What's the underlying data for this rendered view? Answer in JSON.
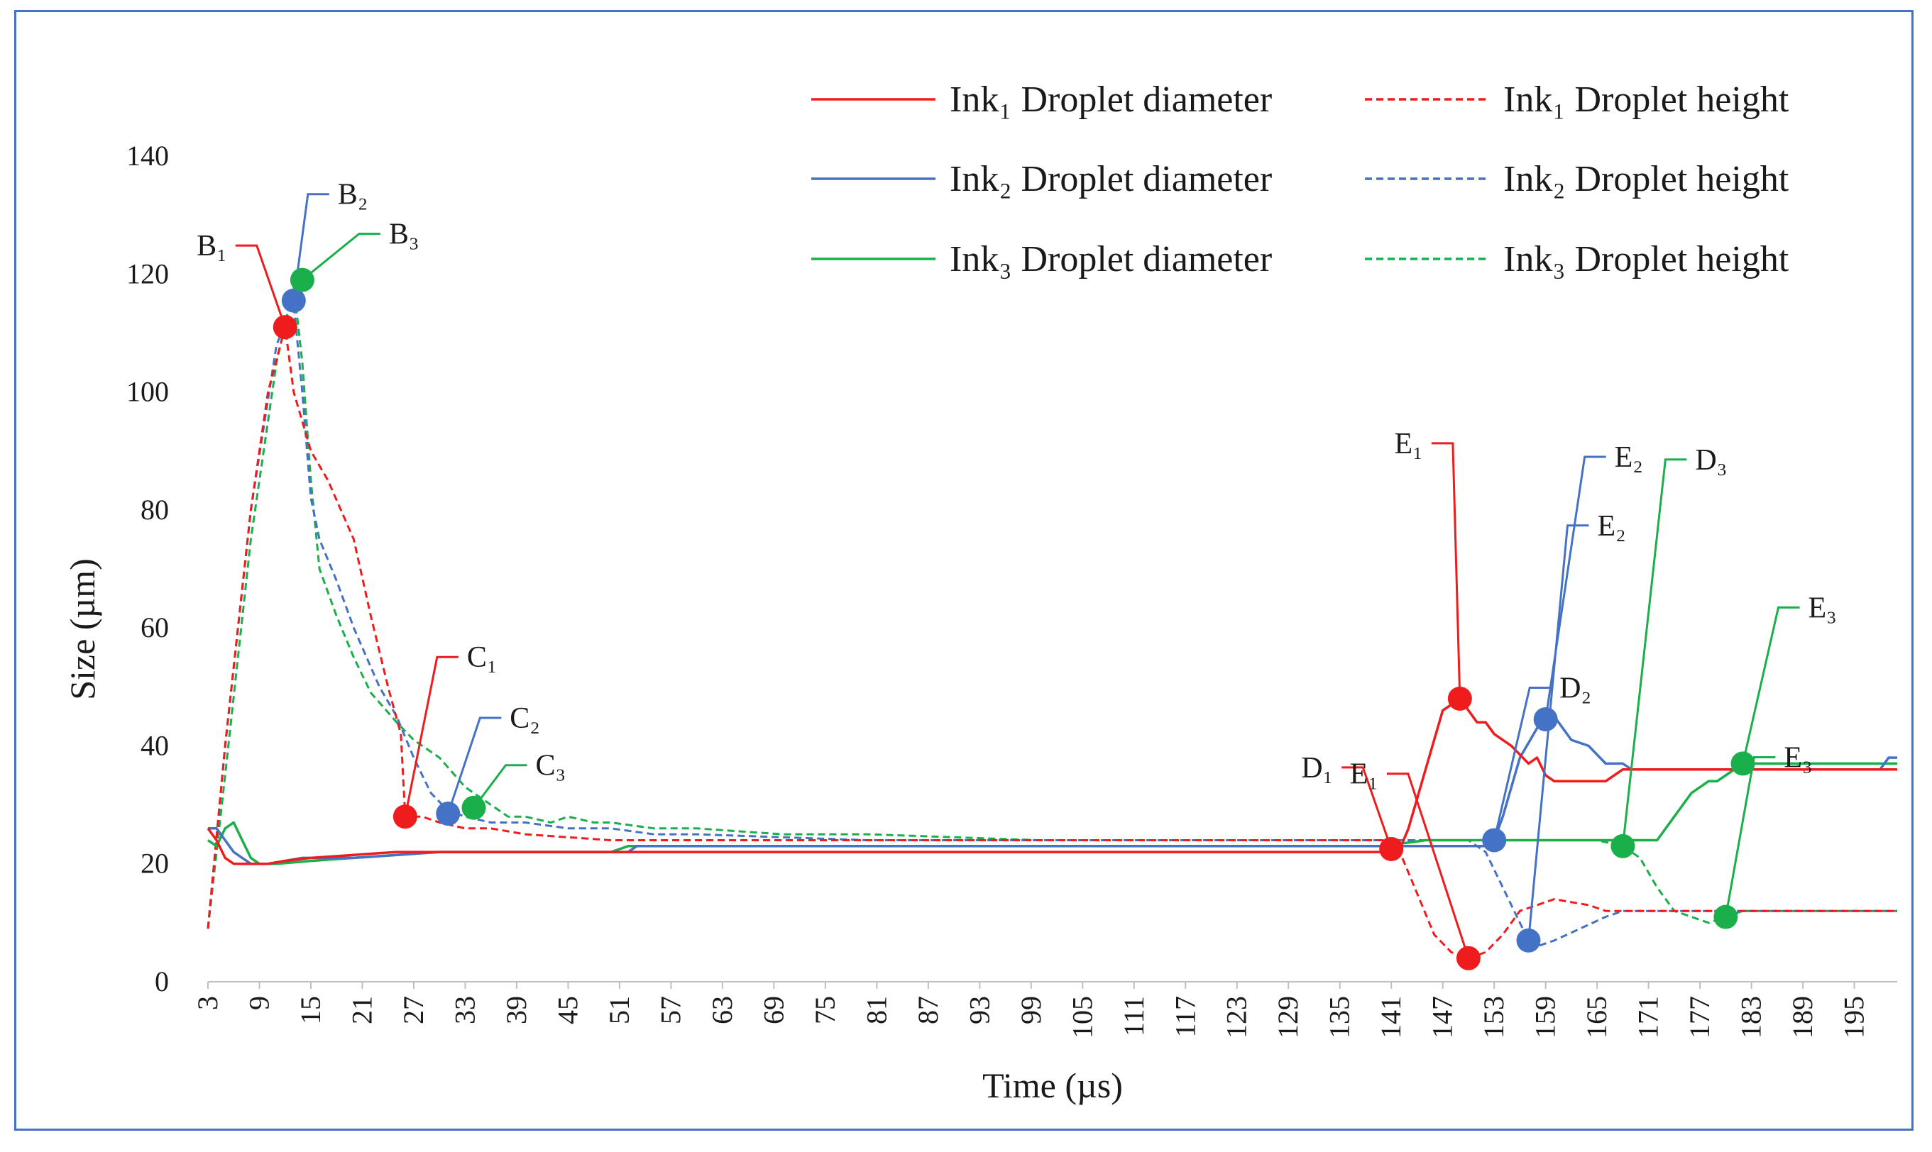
{
  "chart_data": {
    "type": "line",
    "xlabel": "Time (µs)",
    "ylabel": "Size (µm)",
    "xlim": [
      3,
      200
    ],
    "ylim": [
      0,
      140
    ],
    "x_ticks": [
      "3",
      "9",
      "15",
      "21",
      "27",
      "33",
      "39",
      "45",
      "51",
      "57",
      "63",
      "69",
      "75",
      "81",
      "87",
      "93",
      "99",
      "105",
      "111",
      "117",
      "123",
      "129",
      "135",
      "141",
      "147",
      "153",
      "159",
      "165",
      "171",
      "177",
      "183",
      "189",
      "195"
    ],
    "y_ticks": [
      "0",
      "20",
      "40",
      "60",
      "80",
      "100",
      "120",
      "140"
    ],
    "colors": {
      "ink1": "#ee1c1c",
      "ink2": "#4472c4",
      "ink3": "#1aaf4b",
      "frame": "#4472c4"
    },
    "series": [
      {
        "name": "Ink₁ Droplet diameter",
        "color": "#ee1c1c",
        "dash": false,
        "points": [
          [
            3,
            26
          ],
          [
            4,
            24
          ],
          [
            5,
            21
          ],
          [
            6,
            20
          ],
          [
            8,
            20
          ],
          [
            10,
            20
          ],
          [
            12,
            20.5
          ],
          [
            15,
            21
          ],
          [
            20,
            21.5
          ],
          [
            25,
            22
          ],
          [
            30,
            22
          ],
          [
            50,
            22
          ],
          [
            100,
            22
          ],
          [
            140,
            22
          ],
          [
            142,
            22.5
          ],
          [
            143,
            26
          ],
          [
            145,
            36
          ],
          [
            147,
            46
          ],
          [
            149,
            48
          ],
          [
            151,
            44
          ],
          [
            152,
            44
          ],
          [
            153,
            42
          ],
          [
            155,
            40
          ],
          [
            157,
            37
          ],
          [
            158,
            38
          ],
          [
            159,
            35
          ],
          [
            160,
            34
          ],
          [
            166,
            34
          ],
          [
            167,
            35
          ],
          [
            168,
            36
          ],
          [
            200,
            36
          ]
        ]
      },
      {
        "name": "Ink₁ Droplet height",
        "color": "#ee1c1c",
        "dash": true,
        "points": [
          [
            3,
            9
          ],
          [
            5,
            40
          ],
          [
            8,
            80
          ],
          [
            10,
            100
          ],
          [
            12,
            111
          ],
          [
            13,
            100
          ],
          [
            15,
            90
          ],
          [
            17,
            85
          ],
          [
            20,
            75
          ],
          [
            22,
            62
          ],
          [
            24,
            50
          ],
          [
            25.5,
            42
          ],
          [
            26,
            28
          ],
          [
            28,
            28
          ],
          [
            30,
            27
          ],
          [
            33,
            26
          ],
          [
            36,
            26
          ],
          [
            40,
            25
          ],
          [
            50,
            24
          ],
          [
            60,
            24
          ],
          [
            80,
            24
          ],
          [
            100,
            24
          ],
          [
            120,
            24
          ],
          [
            140,
            24
          ],
          [
            142,
            22
          ],
          [
            144,
            15
          ],
          [
            146,
            8
          ],
          [
            148,
            5
          ],
          [
            150,
            4
          ],
          [
            152,
            5
          ],
          [
            154,
            8
          ],
          [
            156,
            12
          ],
          [
            158,
            13
          ],
          [
            160,
            14
          ],
          [
            162,
            13.5
          ],
          [
            164,
            13
          ],
          [
            166,
            12
          ],
          [
            200,
            12
          ]
        ]
      },
      {
        "name": "Ink₂ Droplet diameter",
        "color": "#4472c4",
        "dash": false,
        "points": [
          [
            3,
            26
          ],
          [
            4,
            26
          ],
          [
            5,
            24
          ],
          [
            6,
            22
          ],
          [
            7,
            21
          ],
          [
            8,
            20
          ],
          [
            10,
            20
          ],
          [
            14,
            21
          ],
          [
            20,
            21
          ],
          [
            30,
            22
          ],
          [
            48,
            22
          ],
          [
            52,
            22
          ],
          [
            53,
            23
          ],
          [
            100,
            23
          ],
          [
            140,
            23
          ],
          [
            152,
            23
          ],
          [
            153,
            24
          ],
          [
            154,
            28
          ],
          [
            156,
            38
          ],
          [
            158,
            43
          ],
          [
            159,
            44
          ],
          [
            160,
            45
          ],
          [
            161,
            43
          ],
          [
            162,
            41
          ],
          [
            164,
            40
          ],
          [
            166,
            37
          ],
          [
            168,
            37
          ],
          [
            169,
            36
          ],
          [
            175,
            36
          ],
          [
            190,
            36
          ],
          [
            198,
            36
          ],
          [
            199,
            38
          ],
          [
            200,
            38
          ]
        ]
      },
      {
        "name": "Ink₂ Droplet height",
        "color": "#4472c4",
        "dash": true,
        "points": [
          [
            3,
            9
          ],
          [
            5,
            40
          ],
          [
            8,
            80
          ],
          [
            11,
            108
          ],
          [
            13,
            115
          ],
          [
            14,
            100
          ],
          [
            15,
            82
          ],
          [
            16,
            75
          ],
          [
            18,
            68
          ],
          [
            20,
            60
          ],
          [
            23,
            50
          ],
          [
            25,
            45
          ],
          [
            27,
            38
          ],
          [
            29,
            32
          ],
          [
            31,
            29
          ],
          [
            33,
            28
          ],
          [
            36,
            27
          ],
          [
            40,
            27
          ],
          [
            45,
            26
          ],
          [
            50,
            26
          ],
          [
            55,
            25
          ],
          [
            60,
            25
          ],
          [
            80,
            24
          ],
          [
            100,
            24
          ],
          [
            120,
            24
          ],
          [
            140,
            24
          ],
          [
            150,
            24
          ],
          [
            152,
            22
          ],
          [
            154,
            16
          ],
          [
            156,
            10
          ],
          [
            157,
            7
          ],
          [
            158,
            6
          ],
          [
            160,
            7
          ],
          [
            163,
            9
          ],
          [
            166,
            11
          ],
          [
            168,
            12
          ],
          [
            200,
            12
          ]
        ]
      },
      {
        "name": "Ink₃ Droplet diameter",
        "color": "#1aaf4b",
        "dash": false,
        "points": [
          [
            3,
            24
          ],
          [
            4,
            23
          ],
          [
            5,
            26
          ],
          [
            6,
            27
          ],
          [
            7,
            24
          ],
          [
            8,
            21
          ],
          [
            9,
            20
          ],
          [
            11,
            20
          ],
          [
            15,
            20.5
          ],
          [
            20,
            21
          ],
          [
            30,
            22
          ],
          [
            50,
            22
          ],
          [
            52,
            23
          ],
          [
            100,
            23
          ],
          [
            140,
            23
          ],
          [
            145,
            24
          ],
          [
            150,
            24
          ],
          [
            160,
            24
          ],
          [
            170,
            24
          ],
          [
            172,
            24
          ],
          [
            174,
            28
          ],
          [
            176,
            32
          ],
          [
            178,
            34
          ],
          [
            179,
            34
          ],
          [
            180,
            35
          ],
          [
            182,
            37
          ],
          [
            190,
            37
          ],
          [
            200,
            37
          ]
        ]
      },
      {
        "name": "Ink₃ Droplet height",
        "color": "#1aaf4b",
        "dash": true,
        "points": [
          [
            3,
            9
          ],
          [
            5,
            35
          ],
          [
            8,
            75
          ],
          [
            11,
            105
          ],
          [
            13,
            118
          ],
          [
            14,
            105
          ],
          [
            15,
            85
          ],
          [
            16,
            70
          ],
          [
            18,
            62
          ],
          [
            20,
            55
          ],
          [
            22,
            49
          ],
          [
            25,
            44
          ],
          [
            27,
            41
          ],
          [
            30,
            38
          ],
          [
            33,
            33
          ],
          [
            36,
            30
          ],
          [
            38,
            28
          ],
          [
            40,
            28
          ],
          [
            43,
            27
          ],
          [
            45,
            28
          ],
          [
            48,
            27
          ],
          [
            50,
            27
          ],
          [
            55,
            26
          ],
          [
            60,
            26
          ],
          [
            70,
            25
          ],
          [
            80,
            25
          ],
          [
            100,
            24
          ],
          [
            120,
            24
          ],
          [
            140,
            24
          ],
          [
            160,
            24
          ],
          [
            165,
            24
          ],
          [
            168,
            23
          ],
          [
            170,
            21
          ],
          [
            172,
            16
          ],
          [
            174,
            12
          ],
          [
            176,
            11
          ],
          [
            178,
            10
          ],
          [
            180,
            11
          ],
          [
            182,
            12
          ],
          [
            200,
            12
          ]
        ]
      }
    ],
    "legend": [
      {
        "label": "Ink₁ Droplet diameter",
        "color": "#ee1c1c",
        "dash": false
      },
      {
        "label": "Ink₁ Droplet height",
        "color": "#ee1c1c",
        "dash": true
      },
      {
        "label": "Ink₂ Droplet diameter",
        "color": "#4472c4",
        "dash": false
      },
      {
        "label": "Ink₂ Droplet height",
        "color": "#4472c4",
        "dash": true
      },
      {
        "label": "Ink₃ Droplet diameter",
        "color": "#1aaf4b",
        "dash": false
      },
      {
        "label": "Ink₃ Droplet height",
        "color": "#1aaf4b",
        "dash": true
      }
    ],
    "legend_position": "top-right",
    "annotations": [
      {
        "label": "B₁",
        "x": 12,
        "y": 111,
        "color": "#ee1c1c",
        "side": "left"
      },
      {
        "label": "B₂",
        "x": 13,
        "y": 115.5,
        "color": "#4472c4",
        "side": "up"
      },
      {
        "label": "B₃",
        "x": 14,
        "y": 119,
        "color": "#1aaf4b",
        "side": "right"
      },
      {
        "label": "C₁",
        "x": 26,
        "y": 28,
        "color": "#ee1c1c",
        "side": "right"
      },
      {
        "label": "C₂",
        "x": 31,
        "y": 28.5,
        "color": "#4472c4",
        "side": "right"
      },
      {
        "label": "C₃",
        "x": 34,
        "y": 29.5,
        "color": "#1aaf4b",
        "side": "right"
      },
      {
        "label": "D₁",
        "x": 141,
        "y": 22.5,
        "color": "#ee1c1c",
        "side": "left"
      },
      {
        "label": "E₁",
        "x": 149,
        "y": 48,
        "color": "#ee1c1c",
        "side": "left"
      },
      {
        "label": "E₁",
        "x": 150,
        "y": 4,
        "color": "#ee1c1c",
        "side": "left"
      },
      {
        "label": "D₂",
        "x": 153,
        "y": 24,
        "color": "#4472c4",
        "side": "right"
      },
      {
        "label": "E₂",
        "x": 159,
        "y": 44.5,
        "color": "#4472c4",
        "side": "right"
      },
      {
        "label": "E₂",
        "x": 157,
        "y": 7,
        "color": "#4472c4",
        "side": "right"
      },
      {
        "label": "D₃",
        "x": 168,
        "y": 23,
        "color": "#1aaf4b",
        "side": "right"
      },
      {
        "label": "E₃",
        "x": 182,
        "y": 37,
        "color": "#1aaf4b",
        "side": "right"
      },
      {
        "label": "E₃",
        "x": 180,
        "y": 11,
        "color": "#1aaf4b",
        "side": "right"
      }
    ]
  }
}
